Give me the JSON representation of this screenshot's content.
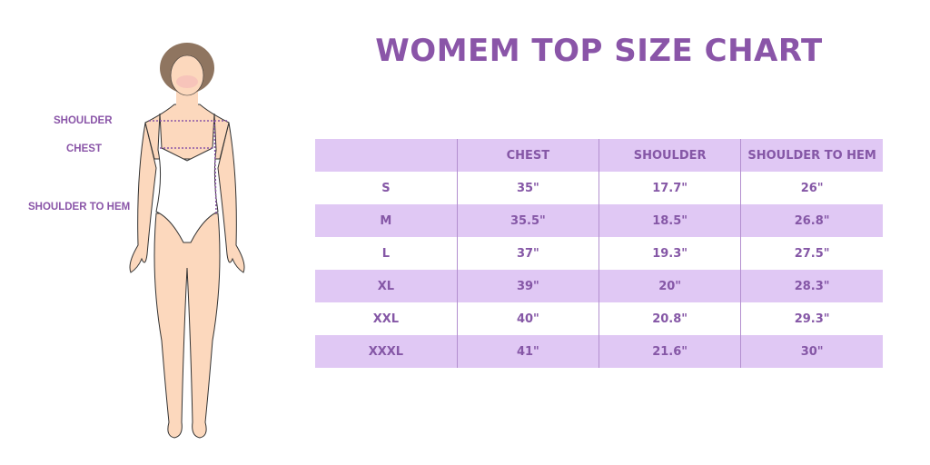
{
  "title": "WOMEM TOP SIZE CHART",
  "figure_labels": {
    "shoulder": "SHOULDER",
    "chest": "CHEST",
    "shoulder_to_hem": "SHOULDER TO HEM"
  },
  "colors": {
    "accent": "#8a55a8",
    "row_shade": "#e0c8f4"
  },
  "table": {
    "headers": [
      "",
      "CHEST",
      "SHOULDER",
      "SHOULDER TO HEM"
    ],
    "rows": [
      [
        "S",
        "35\"",
        "17.7\"",
        "26\""
      ],
      [
        "M",
        "35.5\"",
        "18.5\"",
        "26.8\""
      ],
      [
        "L",
        "37\"",
        "19.3\"",
        "27.5\""
      ],
      [
        "XL",
        "39\"",
        "20\"",
        "28.3\""
      ],
      [
        "XXL",
        "40\"",
        "20.8\"",
        "29.3\""
      ],
      [
        "XXXL",
        "41\"",
        "21.6\"",
        "30\""
      ]
    ]
  }
}
